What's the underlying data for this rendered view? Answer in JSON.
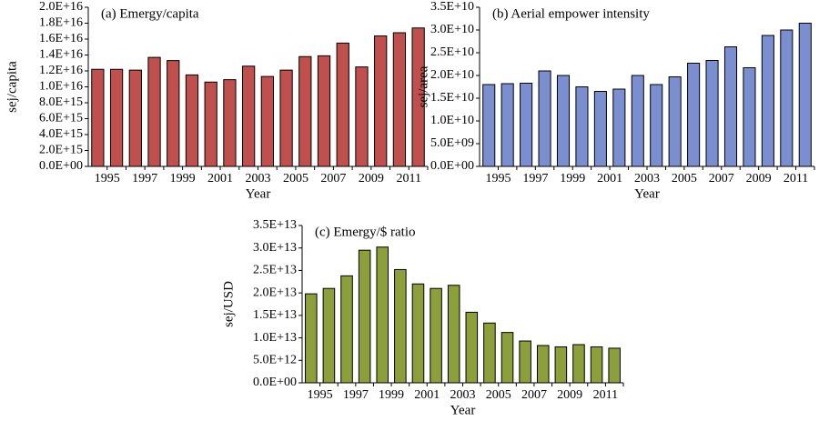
{
  "chart_data": [
    {
      "type": "bar",
      "title": "(a) Emergy/capita",
      "y_label": "sej/capita",
      "x_label": "Year",
      "color": "#c0504d",
      "categories": [
        "1995",
        null,
        "1997",
        null,
        "1999",
        null,
        "2001",
        null,
        "2003",
        null,
        "2005",
        null,
        "2007",
        null,
        "2009",
        null,
        "2011",
        null
      ],
      "values": [
        1.22e+16,
        1.22e+16,
        1.21e+16,
        1.37e+16,
        1.33e+16,
        1.15e+16,
        1.06e+16,
        1.09e+16,
        1.26e+16,
        1.13e+16,
        1.21e+16,
        1.38e+16,
        1.39e+16,
        1.55e+16,
        1.25e+16,
        1.64e+16,
        1.68e+16,
        1.74e+16
      ],
      "ylim": [
        0,
        2e+16
      ],
      "yticks": [
        {
          "value": 0,
          "label": "0.0E+00"
        },
        {
          "value": 2000000000000000.0,
          "label": "2.0E+15"
        },
        {
          "value": 4000000000000000.0,
          "label": "4.0E+15"
        },
        {
          "value": 6000000000000000.0,
          "label": "6.0E+15"
        },
        {
          "value": 8000000000000000.0,
          "label": "8.0E+15"
        },
        {
          "value": 1e+16,
          "label": "1.0E+16"
        },
        {
          "value": 1.2e+16,
          "label": "1.2E+16"
        },
        {
          "value": 1.4e+16,
          "label": "1.4E+16"
        },
        {
          "value": 1.6e+16,
          "label": "1.6E+16"
        },
        {
          "value": 1.8e+16,
          "label": "1.8E+16"
        },
        {
          "value": 2e+16,
          "label": "2.0E+16"
        }
      ]
    },
    {
      "type": "bar",
      "title": "(b) Aerial empower intensity",
      "y_label": "sej/area",
      "x_label": "Year",
      "color": "#7b8fd0",
      "categories": [
        "1995",
        null,
        "1997",
        null,
        "1999",
        null,
        "2001",
        null,
        "2003",
        null,
        "2005",
        null,
        "2007",
        null,
        "2009",
        null,
        "2011",
        null
      ],
      "values": [
        18000000000.0,
        18200000000.0,
        18300000000.0,
        21000000000.0,
        20000000000.0,
        17500000000.0,
        16500000000.0,
        17000000000.0,
        20000000000.0,
        18000000000.0,
        19700000000.0,
        22700000000.0,
        23300000000.0,
        26300000000.0,
        21700000000.0,
        28800000000.0,
        30000000000.0,
        31500000000.0
      ],
      "ylim": [
        0,
        35000000000.0
      ],
      "yticks": [
        {
          "value": 0,
          "label": "0.0E+00"
        },
        {
          "value": 5000000000.0,
          "label": "5.0E+09"
        },
        {
          "value": 10000000000.0,
          "label": "1.0E+10"
        },
        {
          "value": 15000000000.0,
          "label": "1.5E+10"
        },
        {
          "value": 20000000000.0,
          "label": "2.0E+10"
        },
        {
          "value": 25000000000.0,
          "label": "2.5E+10"
        },
        {
          "value": 30000000000.0,
          "label": "3.0E+10"
        },
        {
          "value": 35000000000.0,
          "label": "3.5E+10"
        }
      ]
    },
    {
      "type": "bar",
      "title": "(c) Emergy/$ ratio",
      "y_label": "sej/USD",
      "x_label": "Year",
      "color": "#8c9f3b",
      "categories": [
        "1995",
        null,
        "1997",
        null,
        "1999",
        null,
        "2001",
        null,
        "2003",
        null,
        "2005",
        null,
        "2007",
        null,
        "2009",
        null,
        "2011",
        null
      ],
      "values": [
        19800000000000.0,
        21000000000000.0,
        23800000000000.0,
        29500000000000.0,
        30200000000000.0,
        25200000000000.0,
        22000000000000.0,
        21000000000000.0,
        21700000000000.0,
        15700000000000.0,
        13300000000000.0,
        11200000000000.0,
        9300000000000.0,
        8300000000000.0,
        8000000000000.0,
        8500000000000.0,
        8000000000000.0,
        7700000000000.0
      ],
      "ylim": [
        0,
        35000000000000.0
      ],
      "yticks": [
        {
          "value": 0,
          "label": "0.0E+00"
        },
        {
          "value": 5000000000000.0,
          "label": "5.0E+12"
        },
        {
          "value": 10000000000000.0,
          "label": "1.0E+13"
        },
        {
          "value": 15000000000000.0,
          "label": "1.5E+13"
        },
        {
          "value": 20000000000000.0,
          "label": "2.0E+13"
        },
        {
          "value": 25000000000000.0,
          "label": "2.5E+13"
        },
        {
          "value": 30000000000000.0,
          "label": "3.0E+13"
        },
        {
          "value": 35000000000000.0,
          "label": "3.5E+13"
        }
      ]
    }
  ]
}
